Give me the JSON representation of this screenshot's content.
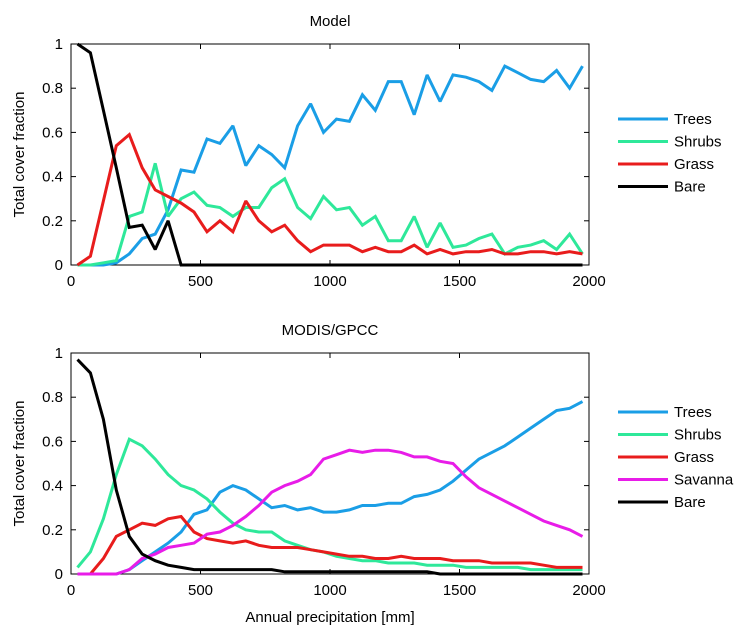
{
  "chart_data": [
    {
      "type": "line",
      "title": "Model",
      "xlabel": "",
      "ylabel": "Total cover fraction",
      "xlim": [
        0,
        2000
      ],
      "ylim": [
        0,
        1
      ],
      "xticks": [
        0,
        500,
        1000,
        1500,
        2000
      ],
      "yticks": [
        0,
        0.2,
        0.4,
        0.6,
        0.8,
        1
      ],
      "xtick_labels": [
        "0",
        "500",
        "1000",
        "1500",
        "2000"
      ],
      "ytick_labels": [
        "0",
        "0.2",
        "0.4",
        "0.6",
        "0.8",
        "1"
      ],
      "grid": false,
      "legend_position": "right",
      "series": [
        {
          "name": "Trees",
          "color": "#1a9ee6",
          "x": [
            25,
            75,
            125,
            175,
            225,
            275,
            325,
            375,
            425,
            475,
            525,
            575,
            625,
            675,
            725,
            775,
            825,
            875,
            925,
            975,
            1025,
            1075,
            1125,
            1175,
            1225,
            1275,
            1325,
            1375,
            1425,
            1475,
            1525,
            1575,
            1625,
            1675,
            1725,
            1775,
            1825,
            1875,
            1925,
            1975
          ],
          "y": [
            0,
            0,
            0,
            0.01,
            0.05,
            0.12,
            0.14,
            0.25,
            0.43,
            0.42,
            0.57,
            0.55,
            0.63,
            0.45,
            0.54,
            0.5,
            0.44,
            0.63,
            0.73,
            0.6,
            0.66,
            0.65,
            0.77,
            0.7,
            0.83,
            0.83,
            0.68,
            0.86,
            0.74,
            0.86,
            0.85,
            0.83,
            0.79,
            0.9,
            0.87,
            0.84,
            0.83,
            0.88,
            0.8,
            0.9
          ]
        },
        {
          "name": "Shrubs",
          "color": "#2ee89a",
          "x": [
            25,
            75,
            125,
            175,
            225,
            275,
            325,
            375,
            425,
            475,
            525,
            575,
            625,
            675,
            725,
            775,
            825,
            875,
            925,
            975,
            1025,
            1075,
            1125,
            1175,
            1225,
            1275,
            1325,
            1375,
            1425,
            1475,
            1525,
            1575,
            1625,
            1675,
            1725,
            1775,
            1825,
            1875,
            1925,
            1975
          ],
          "y": [
            0,
            0,
            0.01,
            0.02,
            0.22,
            0.24,
            0.46,
            0.22,
            0.3,
            0.33,
            0.27,
            0.26,
            0.22,
            0.26,
            0.26,
            0.35,
            0.39,
            0.26,
            0.21,
            0.31,
            0.25,
            0.26,
            0.18,
            0.22,
            0.11,
            0.11,
            0.22,
            0.08,
            0.19,
            0.08,
            0.09,
            0.12,
            0.14,
            0.05,
            0.08,
            0.09,
            0.11,
            0.07,
            0.14,
            0.05
          ]
        },
        {
          "name": "Grass",
          "color": "#e81c1c",
          "x": [
            25,
            75,
            125,
            175,
            225,
            275,
            325,
            375,
            425,
            475,
            525,
            575,
            625,
            675,
            725,
            775,
            825,
            875,
            925,
            975,
            1025,
            1075,
            1125,
            1175,
            1225,
            1275,
            1325,
            1375,
            1425,
            1475,
            1525,
            1575,
            1625,
            1675,
            1725,
            1775,
            1825,
            1875,
            1925,
            1975
          ],
          "y": [
            0,
            0.04,
            0.29,
            0.54,
            0.59,
            0.44,
            0.34,
            0.31,
            0.28,
            0.24,
            0.15,
            0.2,
            0.15,
            0.29,
            0.2,
            0.15,
            0.18,
            0.11,
            0.06,
            0.09,
            0.09,
            0.09,
            0.06,
            0.08,
            0.06,
            0.06,
            0.09,
            0.05,
            0.07,
            0.05,
            0.06,
            0.06,
            0.07,
            0.05,
            0.05,
            0.06,
            0.06,
            0.05,
            0.06,
            0.05
          ]
        },
        {
          "name": "Bare",
          "color": "#000000",
          "x": [
            25,
            75,
            125,
            175,
            225,
            275,
            325,
            375,
            425,
            475,
            525,
            575,
            625,
            675,
            725,
            775,
            825,
            875,
            925,
            975,
            1025,
            1075,
            1125,
            1175,
            1225,
            1275,
            1325,
            1375,
            1425,
            1475,
            1525,
            1575,
            1625,
            1675,
            1725,
            1775,
            1825,
            1875,
            1925,
            1975
          ],
          "y": [
            1,
            0.96,
            0.7,
            0.44,
            0.17,
            0.18,
            0.07,
            0.2,
            0,
            0,
            0,
            0,
            0,
            0,
            0,
            0,
            0,
            0,
            0,
            0,
            0,
            0,
            0,
            0,
            0,
            0,
            0,
            0,
            0,
            0,
            0,
            0,
            0,
            0,
            0,
            0,
            0,
            0,
            0,
            0
          ]
        }
      ]
    },
    {
      "type": "line",
      "title": "MODIS/GPCC",
      "xlabel": "Annual precipitation [mm]",
      "ylabel": "Total cover fraction",
      "xlim": [
        0,
        2000
      ],
      "ylim": [
        0,
        1
      ],
      "xticks": [
        0,
        500,
        1000,
        1500,
        2000
      ],
      "yticks": [
        0,
        0.2,
        0.4,
        0.6,
        0.8,
        1
      ],
      "xtick_labels": [
        "0",
        "500",
        "1000",
        "1500",
        "2000"
      ],
      "ytick_labels": [
        "0",
        "0.2",
        "0.4",
        "0.6",
        "0.8",
        "1"
      ],
      "grid": false,
      "legend_position": "right",
      "series": [
        {
          "name": "Trees",
          "color": "#1a9ee6",
          "x": [
            25,
            75,
            125,
            175,
            225,
            275,
            325,
            375,
            425,
            475,
            525,
            575,
            625,
            675,
            725,
            775,
            825,
            875,
            925,
            975,
            1025,
            1075,
            1125,
            1175,
            1225,
            1275,
            1325,
            1375,
            1425,
            1475,
            1525,
            1575,
            1625,
            1675,
            1725,
            1775,
            1825,
            1875,
            1925,
            1975
          ],
          "y": [
            0,
            0,
            0,
            0,
            0.02,
            0.06,
            0.1,
            0.14,
            0.19,
            0.27,
            0.29,
            0.37,
            0.4,
            0.38,
            0.34,
            0.3,
            0.31,
            0.29,
            0.3,
            0.28,
            0.28,
            0.29,
            0.31,
            0.31,
            0.32,
            0.32,
            0.35,
            0.36,
            0.38,
            0.42,
            0.47,
            0.52,
            0.55,
            0.58,
            0.62,
            0.66,
            0.7,
            0.74,
            0.75,
            0.78
          ]
        },
        {
          "name": "Shrubs",
          "color": "#2ee89a",
          "x": [
            25,
            75,
            125,
            175,
            225,
            275,
            325,
            375,
            425,
            475,
            525,
            575,
            625,
            675,
            725,
            775,
            825,
            875,
            925,
            975,
            1025,
            1075,
            1125,
            1175,
            1225,
            1275,
            1325,
            1375,
            1425,
            1475,
            1525,
            1575,
            1625,
            1675,
            1725,
            1775,
            1825,
            1875,
            1925,
            1975
          ],
          "y": [
            0.03,
            0.1,
            0.25,
            0.45,
            0.61,
            0.58,
            0.52,
            0.45,
            0.4,
            0.38,
            0.34,
            0.28,
            0.23,
            0.2,
            0.19,
            0.19,
            0.15,
            0.13,
            0.11,
            0.1,
            0.08,
            0.07,
            0.06,
            0.06,
            0.05,
            0.05,
            0.05,
            0.04,
            0.04,
            0.04,
            0.03,
            0.03,
            0.03,
            0.03,
            0.03,
            0.02,
            0.02,
            0.02,
            0.02,
            0.02
          ]
        },
        {
          "name": "Grass",
          "color": "#e81c1c",
          "x": [
            25,
            75,
            125,
            175,
            225,
            275,
            325,
            375,
            425,
            475,
            525,
            575,
            625,
            675,
            725,
            775,
            825,
            875,
            925,
            975,
            1025,
            1075,
            1125,
            1175,
            1225,
            1275,
            1325,
            1375,
            1425,
            1475,
            1525,
            1575,
            1625,
            1675,
            1725,
            1775,
            1825,
            1875,
            1925,
            1975
          ],
          "y": [
            0,
            0,
            0.07,
            0.17,
            0.2,
            0.23,
            0.22,
            0.25,
            0.26,
            0.19,
            0.16,
            0.15,
            0.14,
            0.15,
            0.13,
            0.12,
            0.12,
            0.12,
            0.11,
            0.1,
            0.09,
            0.08,
            0.08,
            0.07,
            0.07,
            0.08,
            0.07,
            0.07,
            0.07,
            0.06,
            0.06,
            0.06,
            0.05,
            0.05,
            0.05,
            0.05,
            0.04,
            0.03,
            0.03,
            0.03
          ]
        },
        {
          "name": "Savanna",
          "color": "#e81ce8",
          "x": [
            25,
            75,
            125,
            175,
            225,
            275,
            325,
            375,
            425,
            475,
            525,
            575,
            625,
            675,
            725,
            775,
            825,
            875,
            925,
            975,
            1025,
            1075,
            1125,
            1175,
            1225,
            1275,
            1325,
            1375,
            1425,
            1475,
            1525,
            1575,
            1625,
            1675,
            1725,
            1775,
            1825,
            1875,
            1925,
            1975
          ],
          "y": [
            0,
            0,
            0,
            0,
            0.02,
            0.07,
            0.09,
            0.12,
            0.13,
            0.14,
            0.18,
            0.19,
            0.22,
            0.26,
            0.31,
            0.37,
            0.4,
            0.42,
            0.45,
            0.52,
            0.54,
            0.56,
            0.55,
            0.56,
            0.56,
            0.55,
            0.53,
            0.53,
            0.51,
            0.5,
            0.44,
            0.39,
            0.36,
            0.33,
            0.3,
            0.27,
            0.24,
            0.22,
            0.2,
            0.17
          ]
        },
        {
          "name": "Bare",
          "color": "#000000",
          "x": [
            25,
            75,
            125,
            175,
            225,
            275,
            325,
            375,
            425,
            475,
            525,
            575,
            625,
            675,
            725,
            775,
            825,
            875,
            925,
            975,
            1025,
            1075,
            1125,
            1175,
            1225,
            1275,
            1325,
            1375,
            1425,
            1475,
            1525,
            1575,
            1625,
            1675,
            1725,
            1775,
            1825,
            1875,
            1925,
            1975
          ],
          "y": [
            0.97,
            0.91,
            0.7,
            0.38,
            0.17,
            0.09,
            0.06,
            0.04,
            0.03,
            0.02,
            0.02,
            0.02,
            0.02,
            0.02,
            0.02,
            0.02,
            0.01,
            0.01,
            0.01,
            0.01,
            0.01,
            0.01,
            0.01,
            0.01,
            0.01,
            0.01,
            0.01,
            0.01,
            0,
            0,
            0,
            0,
            0,
            0,
            0,
            0,
            0,
            0,
            0,
            0
          ]
        }
      ]
    }
  ]
}
